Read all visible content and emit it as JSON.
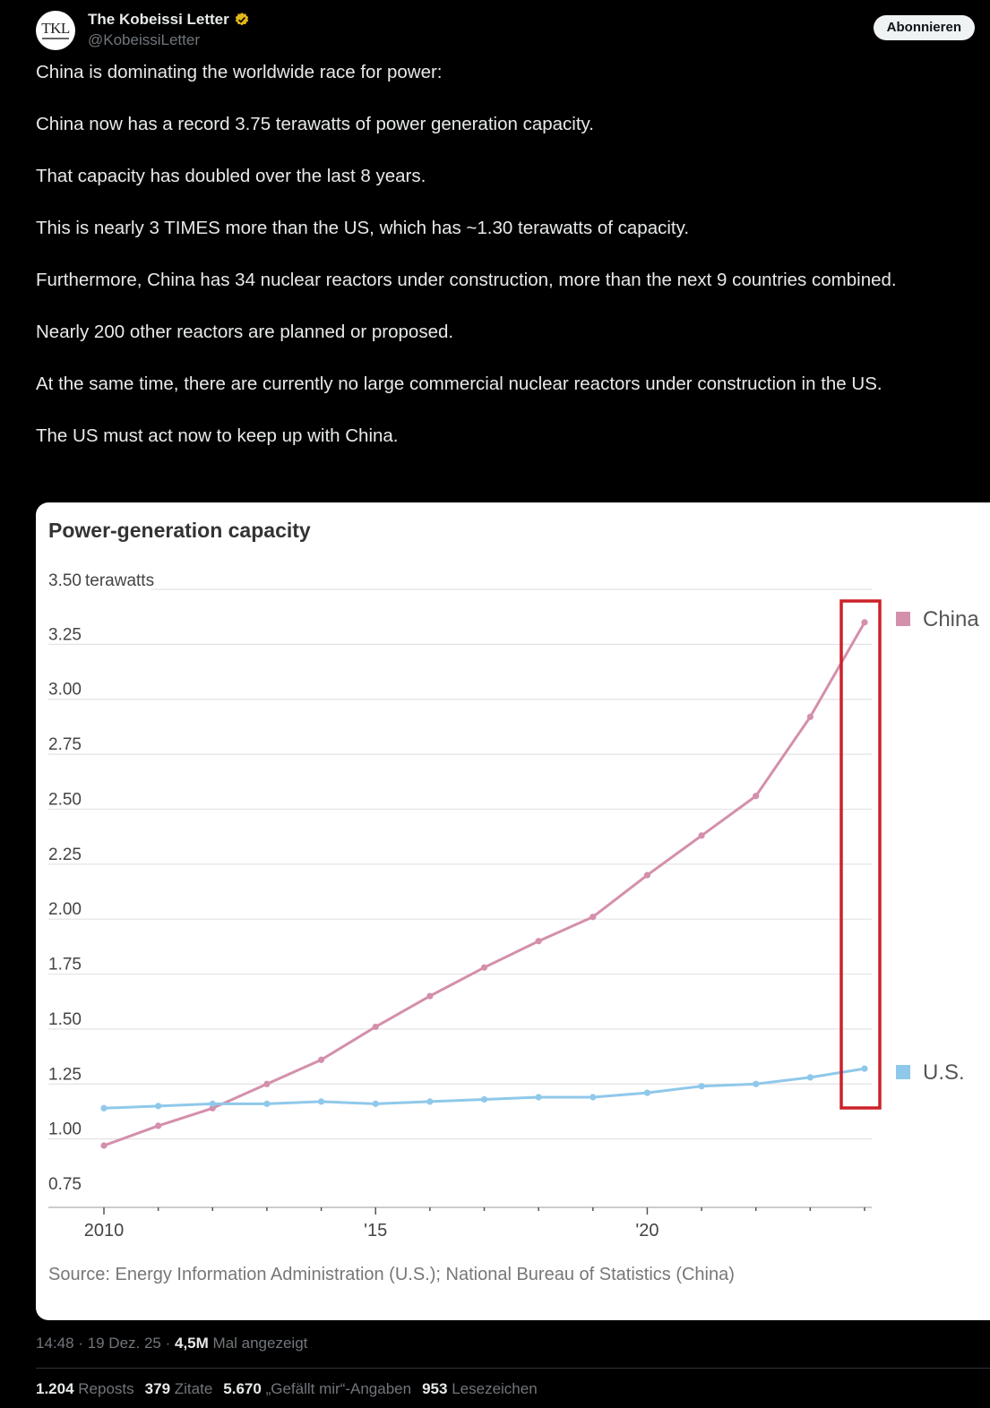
{
  "author": {
    "display_name": "The Kobeissi Letter",
    "handle": "@KobeissiLetter",
    "avatar_text": "TKL"
  },
  "subscribe_label": "Abonnieren",
  "tweet": {
    "paragraphs": [
      "China is dominating the worldwide race for power:",
      "China now has a record 3.75 terawatts of power generation capacity.",
      "That capacity has doubled over the last 8 years.",
      "This is nearly 3 TIMES more than the US, which has ~1.30 terawatts of capacity.",
      "Furthermore, China has 34 nuclear reactors under construction, more than the next 9 countries combined.",
      "Nearly 200 other reactors are planned or proposed.",
      "At the same time, there are currently no large commercial nuclear reactors under construction in the US.",
      "The US must act now to keep up with China."
    ]
  },
  "chart_data": {
    "type": "line",
    "title": "Power-generation capacity",
    "ylabel": "terawatts",
    "ylim": [
      0.75,
      3.5
    ],
    "yticks": [
      "3.50",
      "3.25",
      "3.00",
      "2.75",
      "2.50",
      "2.25",
      "2.00",
      "1.75",
      "1.50",
      "1.25",
      "1.00",
      "0.75"
    ],
    "x": [
      2010,
      2011,
      2012,
      2013,
      2014,
      2015,
      2016,
      2017,
      2018,
      2019,
      2020,
      2021,
      2022,
      2023,
      2024
    ],
    "xticks": [
      "2010",
      "'15",
      "'20"
    ],
    "series": [
      {
        "name": "China",
        "color": "#d48fac",
        "values": [
          0.97,
          1.06,
          1.14,
          1.25,
          1.36,
          1.51,
          1.65,
          1.78,
          1.9,
          2.01,
          2.2,
          2.38,
          2.56,
          2.92,
          3.35
        ]
      },
      {
        "name": "U.S.",
        "color": "#8fc8ea",
        "values": [
          1.14,
          1.15,
          1.16,
          1.16,
          1.17,
          1.16,
          1.17,
          1.18,
          1.19,
          1.19,
          1.21,
          1.24,
          1.25,
          1.28,
          1.32
        ]
      }
    ],
    "highlight_color": "#cc2229",
    "source": "Source: Energy Information Administration (U.S.); National Bureau of Statistics (China)",
    "grid": true,
    "legend": "right"
  },
  "meta": {
    "time": "14:48",
    "date": "19 Dez. 25",
    "views": "4,5M",
    "views_label": "Mal angezeigt"
  },
  "stats": {
    "reposts": "1.204",
    "reposts_label": "Reposts",
    "quotes": "379",
    "quotes_label": "Zitate",
    "likes": "5.670",
    "likes_label": "„Gefällt mir“-Angaben",
    "bookmarks": "953",
    "bookmarks_label": "Lesezeichen"
  }
}
